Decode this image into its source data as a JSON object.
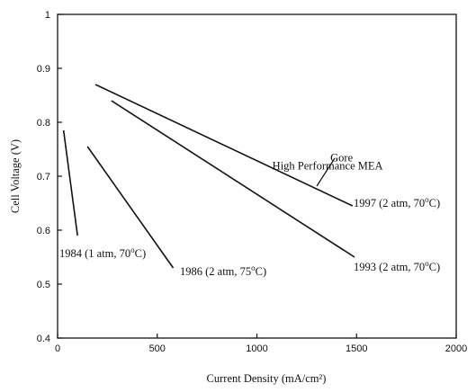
{
  "chart_data": {
    "type": "line",
    "title": "",
    "xlabel": "Current Density (mA/cm²)",
    "ylabel": "Cell Voltage (V)",
    "xlim": [
      0,
      2000
    ],
    "ylim": [
      0.4,
      1.0
    ],
    "x_ticks": [
      0,
      500,
      1000,
      1500,
      2000
    ],
    "y_ticks": [
      0.4,
      0.5,
      0.6,
      0.7,
      0.8,
      0.9,
      1.0
    ],
    "x_tick_labels": [
      "0",
      "500",
      "1000",
      "1500",
      "2000"
    ],
    "y_tick_labels": [
      "0.4",
      "0.5",
      "0.6",
      "0.7",
      "0.8",
      "0.9",
      "1"
    ],
    "grid": false,
    "series": [
      {
        "label": "1984 (1 atm, 70°C)",
        "x": [
          30,
          100
        ],
        "y": [
          0.785,
          0.59
        ]
      },
      {
        "label": "1986 (2 atm, 75°C)",
        "x": [
          150,
          580
        ],
        "y": [
          0.755,
          0.53
        ]
      },
      {
        "label": "1993 (2 atm, 70°C)",
        "x": [
          270,
          1490
        ],
        "y": [
          0.84,
          0.55
        ]
      },
      {
        "label": "1997 (2 atm, 70°C)",
        "x": [
          190,
          1480
        ],
        "y": [
          0.87,
          0.645
        ]
      }
    ],
    "annotations": [
      {
        "text": "Gore",
        "x": 1425,
        "y": 0.7275
      },
      {
        "text": "High Performance MEA",
        "x": 1355,
        "y": 0.7125
      }
    ]
  }
}
